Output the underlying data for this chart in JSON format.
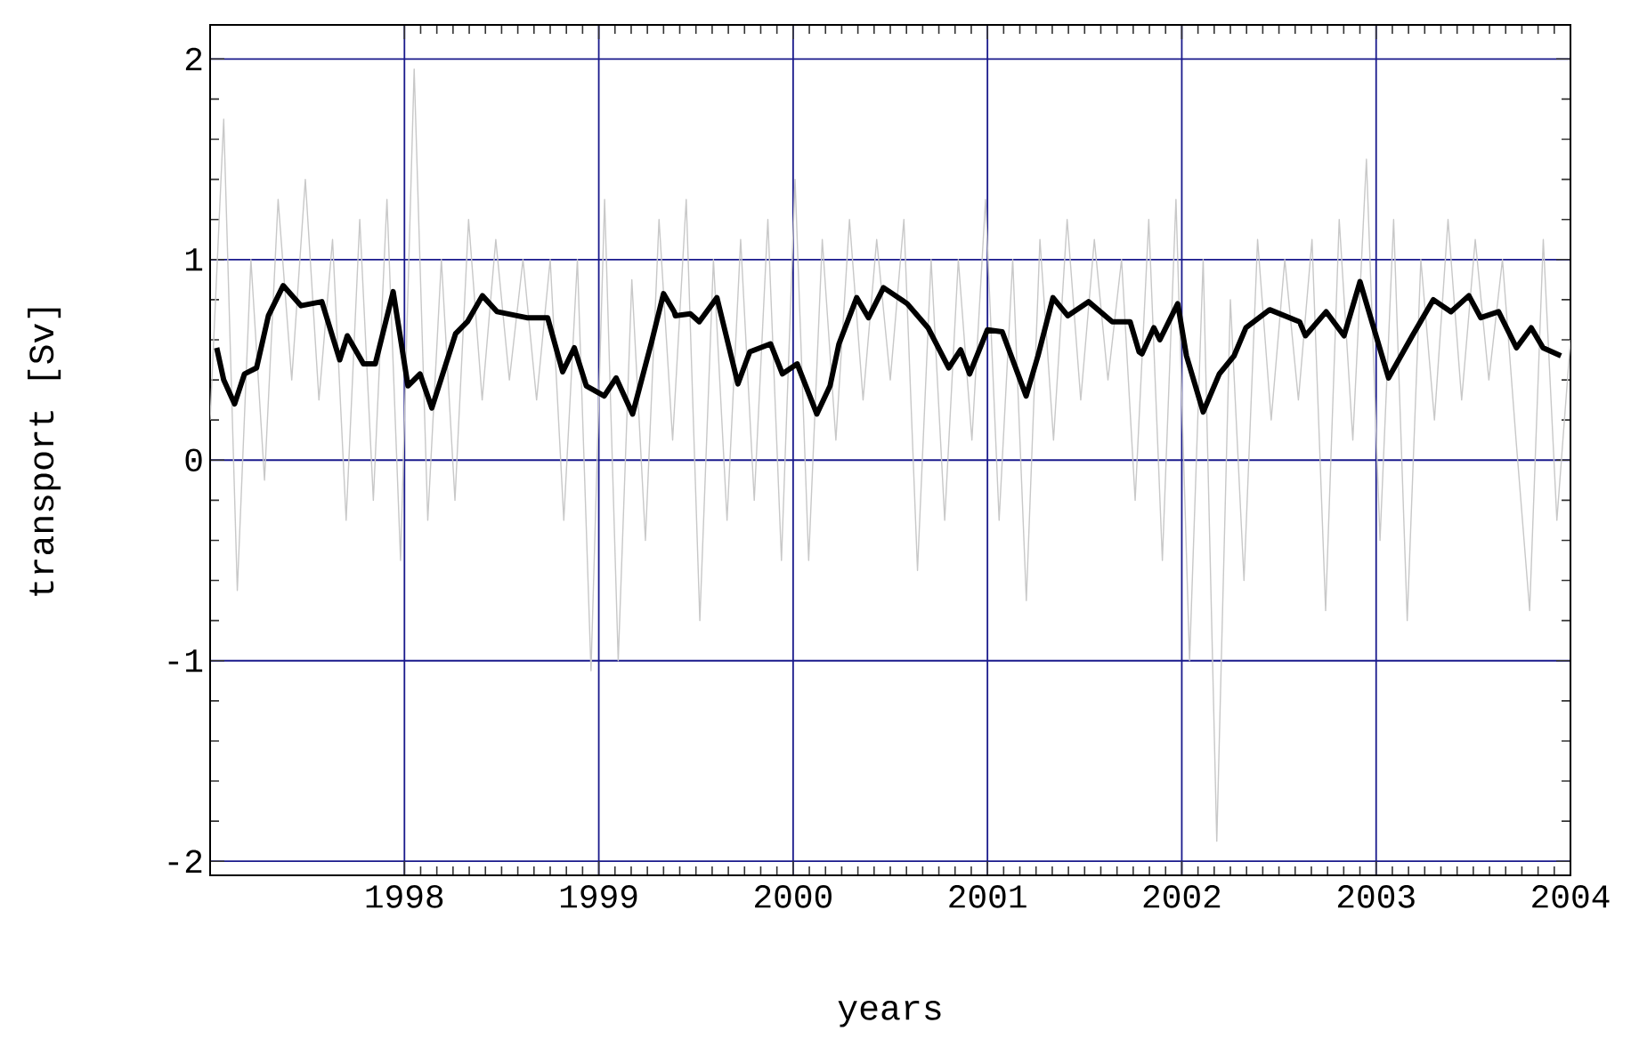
{
  "chart_data": {
    "type": "line",
    "xlabel": "years",
    "ylabel": "transport [Sv]",
    "xlim": [
      1997,
      2004
    ],
    "ylim": [
      -2.07,
      2.17
    ],
    "xticks": [
      1998,
      1999,
      2000,
      2001,
      2002,
      2003,
      2004
    ],
    "yticks": [
      -2,
      -1,
      0,
      1,
      2
    ],
    "grid": true,
    "marker": "none",
    "line_style": "solid",
    "series": [
      {
        "color": "#c8c8c8",
        "x": [
          1997.0,
          1997.07,
          1997.14,
          1997.21,
          1997.28,
          1997.35,
          1997.42,
          1997.49,
          1997.56,
          1997.63,
          1997.7,
          1997.77,
          1997.84,
          1997.91,
          1997.98,
          1998.05,
          1998.12,
          1998.19,
          1998.26,
          1998.33,
          1998.4,
          1998.47,
          1998.54,
          1998.61,
          1998.68,
          1998.75,
          1998.82,
          1998.89,
          1998.96,
          1999.03,
          1999.1,
          1999.17,
          1999.24,
          1999.31,
          1999.38,
          1999.45,
          1999.52,
          1999.59,
          1999.66,
          1999.73,
          1999.8,
          1999.87,
          1999.94,
          2000.01,
          2000.08,
          2000.15,
          2000.22,
          2000.29,
          2000.36,
          2000.43,
          2000.5,
          2000.57,
          2000.64,
          2000.71,
          2000.78,
          2000.85,
          2000.92,
          2000.99,
          2001.06,
          2001.13,
          2001.2,
          2001.27,
          2001.34,
          2001.41,
          2001.48,
          2001.55,
          2001.62,
          2001.69,
          2001.76,
          2001.83,
          2001.9,
          2001.97,
          2002.04,
          2002.11,
          2002.18,
          2002.25,
          2002.32,
          2002.39,
          2002.46,
          2002.53,
          2002.6,
          2002.67,
          2002.74,
          2002.81,
          2002.88,
          2002.95,
          2003.02,
          2003.09,
          2003.16,
          2003.23,
          2003.3,
          2003.37,
          2003.44,
          2003.51,
          2003.58,
          2003.65,
          2003.72,
          2003.79,
          2003.86,
          2003.93,
          2004.0
        ],
        "values": [
          0.2,
          1.7,
          -0.65,
          1.0,
          -0.1,
          1.3,
          0.4,
          1.4,
          0.3,
          1.1,
          -0.3,
          1.2,
          -0.2,
          1.3,
          -0.5,
          1.95,
          -0.3,
          1.0,
          -0.2,
          1.2,
          0.3,
          1.1,
          0.4,
          1.0,
          0.3,
          1.0,
          -0.3,
          1.0,
          -1.05,
          1.3,
          -1.0,
          0.9,
          -0.4,
          1.2,
          0.1,
          1.3,
          -0.8,
          1.0,
          -0.3,
          1.1,
          -0.2,
          1.2,
          -0.5,
          1.4,
          -0.5,
          1.1,
          0.1,
          1.2,
          0.3,
          1.1,
          0.4,
          1.2,
          -0.55,
          1.0,
          -0.3,
          1.0,
          0.1,
          1.3,
          -0.3,
          1.0,
          -0.7,
          1.1,
          0.1,
          1.2,
          0.3,
          1.1,
          0.4,
          1.0,
          -0.2,
          1.2,
          -0.5,
          1.3,
          -1.0,
          1.0,
          -1.9,
          0.8,
          -0.6,
          1.1,
          0.2,
          1.0,
          0.3,
          1.1,
          -0.75,
          1.2,
          0.1,
          1.5,
          -0.4,
          1.2,
          -0.8,
          1.0,
          0.2,
          1.2,
          0.3,
          1.1,
          0.4,
          1.0,
          0.1,
          -0.75,
          1.1,
          -0.3,
          0.6
        ]
      },
      {
        "color": "#000000",
        "x": [
          1997.034,
          1997.07,
          1997.126,
          1997.177,
          1997.239,
          1997.3,
          1997.376,
          1997.468,
          1997.575,
          1997.667,
          1997.706,
          1997.789,
          1997.85,
          1997.942,
          1998.018,
          1998.08,
          1998.141,
          1998.263,
          1998.324,
          1998.401,
          1998.477,
          1998.63,
          1998.737,
          1998.814,
          1998.874,
          1998.936,
          1999.028,
          1999.089,
          1999.174,
          1999.272,
          1999.333,
          1999.388,
          1999.394,
          1999.471,
          1999.517,
          1999.608,
          1999.716,
          1999.777,
          1999.884,
          1999.945,
          2000.021,
          2000.122,
          2000.19,
          2000.236,
          2000.327,
          2000.388,
          2000.465,
          2000.587,
          2000.694,
          2000.801,
          2000.862,
          2000.908,
          2001.0,
          2001.076,
          2001.199,
          2001.26,
          2001.337,
          2001.413,
          2001.52,
          2001.642,
          2001.734,
          2001.78,
          2001.795,
          2001.856,
          2001.887,
          2001.979,
          2002.024,
          2002.11,
          2002.193,
          2002.269,
          2002.33,
          2002.452,
          2002.606,
          2002.636,
          2002.743,
          2002.835,
          2002.917,
          2003.064,
          2003.186,
          2003.294,
          2003.385,
          2003.477,
          2003.538,
          2003.63,
          2003.722,
          2003.798,
          2003.859,
          2003.951
        ],
        "values": [
          0.56,
          0.4,
          0.28,
          0.43,
          0.46,
          0.72,
          0.87,
          0.77,
          0.79,
          0.5,
          0.62,
          0.48,
          0.48,
          0.84,
          0.37,
          0.43,
          0.26,
          0.63,
          0.69,
          0.82,
          0.74,
          0.71,
          0.71,
          0.44,
          0.56,
          0.37,
          0.32,
          0.41,
          0.23,
          0.59,
          0.83,
          0.74,
          0.72,
          0.73,
          0.69,
          0.81,
          0.38,
          0.54,
          0.58,
          0.43,
          0.48,
          0.23,
          0.37,
          0.58,
          0.81,
          0.71,
          0.86,
          0.78,
          0.66,
          0.46,
          0.55,
          0.43,
          0.65,
          0.64,
          0.32,
          0.52,
          0.81,
          0.72,
          0.79,
          0.69,
          0.69,
          0.54,
          0.53,
          0.66,
          0.6,
          0.78,
          0.52,
          0.24,
          0.43,
          0.52,
          0.66,
          0.75,
          0.69,
          0.62,
          0.74,
          0.62,
          0.89,
          0.41,
          0.62,
          0.8,
          0.74,
          0.82,
          0.71,
          0.74,
          0.56,
          0.66,
          0.56,
          0.52
        ]
      }
    ]
  }
}
